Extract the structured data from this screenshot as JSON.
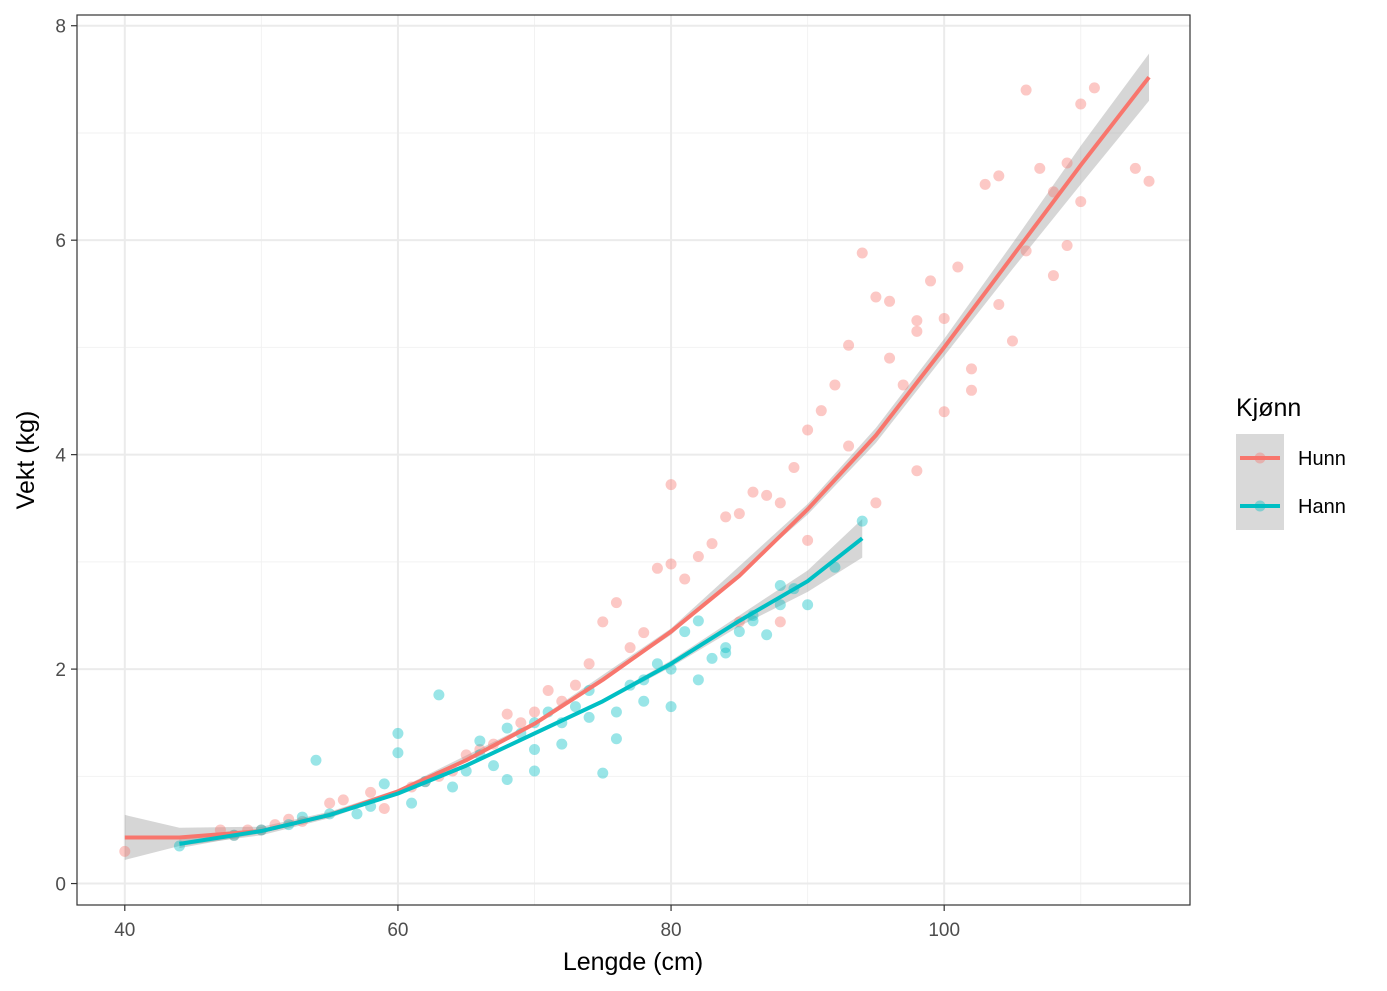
{
  "chart_data": {
    "type": "scatter",
    "title": "",
    "xlabel": "Lengde (cm)",
    "ylabel": "Vekt (kg)",
    "xlim": [
      36.5,
      118
    ],
    "ylim": [
      -0.2,
      8.1
    ],
    "x_ticks": [
      40,
      60,
      80,
      100
    ],
    "y_ticks": [
      0,
      2,
      4,
      6,
      8
    ],
    "grid": true,
    "legend": {
      "title": "Kjønn",
      "position": "right"
    },
    "series": [
      {
        "name": "Hunn",
        "color": "#F8766D",
        "fit": [
          [
            40,
            0.43
          ],
          [
            44,
            0.43
          ],
          [
            50,
            0.49
          ],
          [
            55,
            0.64
          ],
          [
            60,
            0.86
          ],
          [
            65,
            1.15
          ],
          [
            70,
            1.49
          ],
          [
            75,
            1.9
          ],
          [
            80,
            2.35
          ],
          [
            85,
            2.87
          ],
          [
            90,
            3.49
          ],
          [
            95,
            4.18
          ],
          [
            100,
            5.0
          ],
          [
            105,
            5.85
          ],
          [
            110,
            6.7
          ],
          [
            115,
            7.52
          ]
        ],
        "ci": [
          [
            40,
            0.22,
            0.64
          ],
          [
            44,
            0.35,
            0.52
          ],
          [
            50,
            0.45,
            0.53
          ],
          [
            55,
            0.61,
            0.67
          ],
          [
            60,
            0.84,
            0.88
          ],
          [
            70,
            1.47,
            1.51
          ],
          [
            80,
            2.32,
            2.38
          ],
          [
            90,
            3.44,
            3.54
          ],
          [
            95,
            4.11,
            4.25
          ],
          [
            100,
            4.92,
            5.08
          ],
          [
            105,
            5.73,
            5.97
          ],
          [
            110,
            6.52,
            6.88
          ],
          [
            115,
            7.3,
            7.74
          ]
        ],
        "points": [
          [
            40,
            0.3
          ],
          [
            47,
            0.5
          ],
          [
            48,
            0.45
          ],
          [
            49,
            0.5
          ],
          [
            50,
            0.5
          ],
          [
            51,
            0.55
          ],
          [
            52,
            0.6
          ],
          [
            53,
            0.58
          ],
          [
            55,
            0.75
          ],
          [
            56,
            0.78
          ],
          [
            58,
            0.85
          ],
          [
            59,
            0.7
          ],
          [
            61,
            0.9
          ],
          [
            62,
            0.95
          ],
          [
            63,
            1.0
          ],
          [
            64,
            1.05
          ],
          [
            65,
            1.2
          ],
          [
            66,
            1.25
          ],
          [
            67,
            1.3
          ],
          [
            68,
            1.58
          ],
          [
            69,
            1.5
          ],
          [
            70,
            1.6
          ],
          [
            71,
            1.8
          ],
          [
            72,
            1.7
          ],
          [
            73,
            1.85
          ],
          [
            74,
            2.05
          ],
          [
            75,
            2.44
          ],
          [
            76,
            2.62
          ],
          [
            77,
            2.2
          ],
          [
            78,
            2.34
          ],
          [
            79,
            2.94
          ],
          [
            80,
            2.98
          ],
          [
            80,
            3.72
          ],
          [
            81,
            2.84
          ],
          [
            82,
            3.05
          ],
          [
            83,
            3.17
          ],
          [
            84,
            3.42
          ],
          [
            85,
            3.45
          ],
          [
            86,
            3.65
          ],
          [
            87,
            3.62
          ],
          [
            88,
            3.55
          ],
          [
            89,
            3.88
          ],
          [
            90,
            4.23
          ],
          [
            91,
            4.41
          ],
          [
            92,
            4.65
          ],
          [
            93,
            4.08
          ],
          [
            94,
            5.88
          ],
          [
            95,
            5.47
          ],
          [
            96,
            5.43
          ],
          [
            97,
            4.65
          ],
          [
            98,
            5.25
          ],
          [
            99,
            5.62
          ],
          [
            100,
            5.27
          ],
          [
            101,
            5.75
          ],
          [
            102,
            4.6
          ],
          [
            103,
            6.52
          ],
          [
            104,
            6.6
          ],
          [
            105,
            5.06
          ],
          [
            106,
            7.4
          ],
          [
            107,
            6.67
          ],
          [
            108,
            5.67
          ],
          [
            109,
            6.72
          ],
          [
            110,
            6.36
          ],
          [
            111,
            7.42
          ],
          [
            114,
            6.67
          ],
          [
            115,
            6.55
          ],
          [
            85,
            2.44
          ],
          [
            88,
            2.44
          ],
          [
            90,
            3.2
          ],
          [
            95,
            3.55
          ],
          [
            98,
            3.85
          ],
          [
            100,
            4.4
          ],
          [
            102,
            4.8
          ],
          [
            104,
            5.4
          ],
          [
            106,
            5.9
          ],
          [
            108,
            6.45
          ],
          [
            109,
            5.95
          ],
          [
            110,
            7.27
          ],
          [
            96,
            4.9
          ],
          [
            98,
            5.15
          ],
          [
            93,
            5.02
          ]
        ]
      },
      {
        "name": "Hann",
        "color": "#00BFC4",
        "fit": [
          [
            44,
            0.37
          ],
          [
            50,
            0.49
          ],
          [
            55,
            0.64
          ],
          [
            60,
            0.84
          ],
          [
            65,
            1.1
          ],
          [
            70,
            1.4
          ],
          [
            75,
            1.7
          ],
          [
            80,
            2.05
          ],
          [
            85,
            2.45
          ],
          [
            90,
            2.82
          ],
          [
            94,
            3.22
          ]
        ],
        "ci": [
          [
            44,
            0.33,
            0.41
          ],
          [
            50,
            0.47,
            0.51
          ],
          [
            55,
            0.62,
            0.66
          ],
          [
            60,
            0.82,
            0.86
          ],
          [
            65,
            1.08,
            1.12
          ],
          [
            70,
            1.38,
            1.42
          ],
          [
            75,
            1.68,
            1.72
          ],
          [
            80,
            2.02,
            2.08
          ],
          [
            85,
            2.4,
            2.5
          ],
          [
            90,
            2.72,
            2.92
          ],
          [
            94,
            3.04,
            3.4
          ]
        ],
        "points": [
          [
            44,
            0.35
          ],
          [
            48,
            0.45
          ],
          [
            50,
            0.5
          ],
          [
            52,
            0.55
          ],
          [
            53,
            0.62
          ],
          [
            54,
            1.15
          ],
          [
            55,
            0.65
          ],
          [
            57,
            0.65
          ],
          [
            58,
            0.72
          ],
          [
            59,
            0.93
          ],
          [
            60,
            1.4
          ],
          [
            60,
            1.22
          ],
          [
            61,
            0.75
          ],
          [
            62,
            0.95
          ],
          [
            63,
            1.76
          ],
          [
            64,
            0.9
          ],
          [
            65,
            1.05
          ],
          [
            66,
            1.33
          ],
          [
            67,
            1.1
          ],
          [
            68,
            0.97
          ],
          [
            69,
            1.4
          ],
          [
            70,
            1.5
          ],
          [
            71,
            1.6
          ],
          [
            72,
            1.3
          ],
          [
            73,
            1.65
          ],
          [
            74,
            1.8
          ],
          [
            75,
            1.03
          ],
          [
            76,
            1.35
          ],
          [
            77,
            1.85
          ],
          [
            78,
            1.7
          ],
          [
            79,
            2.05
          ],
          [
            80,
            1.65
          ],
          [
            81,
            2.35
          ],
          [
            82,
            2.45
          ],
          [
            83,
            2.1
          ],
          [
            84,
            2.15
          ],
          [
            85,
            2.35
          ],
          [
            86,
            2.45
          ],
          [
            87,
            2.32
          ],
          [
            88,
            2.78
          ],
          [
            89,
            2.75
          ],
          [
            90,
            2.6
          ],
          [
            94,
            3.38
          ],
          [
            66,
            1.2
          ],
          [
            68,
            1.45
          ],
          [
            70,
            1.25
          ],
          [
            72,
            1.5
          ],
          [
            74,
            1.55
          ],
          [
            76,
            1.6
          ],
          [
            78,
            1.9
          ],
          [
            80,
            2.0
          ],
          [
            82,
            1.9
          ],
          [
            84,
            2.2
          ],
          [
            86,
            2.5
          ],
          [
            88,
            2.6
          ],
          [
            92,
            2.95
          ],
          [
            70,
            1.05
          ]
        ]
      }
    ]
  }
}
